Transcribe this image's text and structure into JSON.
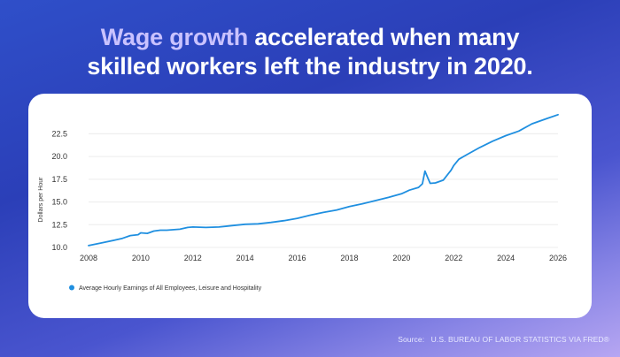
{
  "headline": {
    "accent": "Wage growth",
    "rest_line1": "accelerated when many",
    "line2": "skilled workers left the industry in 2020."
  },
  "source": {
    "label": "Source:",
    "text": "U.S. BUREAU OF LABOR STATISTICS VIA FRED®"
  },
  "colors": {
    "line": "#1f8fe0",
    "accent_text": "#c9c2ff"
  },
  "chart_data": {
    "type": "line",
    "ylabel": "Dollars per Hour",
    "xlabel": "",
    "xlim": [
      2008,
      2026
    ],
    "ylim": [
      10,
      24
    ],
    "y_ticks": [
      "10.0",
      "12.5",
      "15.0",
      "17.5",
      "20.0",
      "22.5"
    ],
    "x_ticks": [
      "2008",
      "2010",
      "2012",
      "2014",
      "2016",
      "2018",
      "2020",
      "2022",
      "2024",
      "2026"
    ],
    "grid": "horizontal",
    "legend_position": "bottom-left",
    "series": [
      {
        "name": "Average Hourly Earnings of All Employees, Leisure and Hospitality",
        "color": "#1f8fe0",
        "points": [
          [
            2008.0,
            10.2
          ],
          [
            2008.5,
            10.5
          ],
          [
            2009.0,
            10.8
          ],
          [
            2009.3,
            11.0
          ],
          [
            2009.6,
            11.3
          ],
          [
            2009.9,
            11.4
          ],
          [
            2010.0,
            11.6
          ],
          [
            2010.25,
            11.55
          ],
          [
            2010.5,
            11.8
          ],
          [
            2010.75,
            11.9
          ],
          [
            2011.0,
            11.9
          ],
          [
            2011.5,
            12.0
          ],
          [
            2011.8,
            12.2
          ],
          [
            2012.0,
            12.25
          ],
          [
            2012.5,
            12.2
          ],
          [
            2013.0,
            12.25
          ],
          [
            2013.5,
            12.4
          ],
          [
            2014.0,
            12.55
          ],
          [
            2014.5,
            12.6
          ],
          [
            2015.0,
            12.75
          ],
          [
            2015.5,
            12.95
          ],
          [
            2016.0,
            13.2
          ],
          [
            2016.5,
            13.55
          ],
          [
            2017.0,
            13.85
          ],
          [
            2017.5,
            14.1
          ],
          [
            2018.0,
            14.5
          ],
          [
            2018.5,
            14.8
          ],
          [
            2019.0,
            15.15
          ],
          [
            2019.5,
            15.5
          ],
          [
            2020.0,
            15.9
          ],
          [
            2020.3,
            16.3
          ],
          [
            2020.65,
            16.6
          ],
          [
            2020.8,
            17.0
          ],
          [
            2020.9,
            18.4
          ],
          [
            2021.0,
            17.7
          ],
          [
            2021.1,
            17.05
          ],
          [
            2021.3,
            17.1
          ],
          [
            2021.6,
            17.4
          ],
          [
            2021.9,
            18.5
          ],
          [
            2022.0,
            19.0
          ],
          [
            2022.2,
            19.7
          ],
          [
            2022.5,
            20.2
          ],
          [
            2023.0,
            21.0
          ],
          [
            2023.5,
            21.7
          ],
          [
            2024.0,
            22.3
          ],
          [
            2024.5,
            22.8
          ],
          [
            2025.0,
            23.6
          ],
          [
            2025.3,
            23.9
          ],
          [
            2025.6,
            24.2
          ],
          [
            2026.0,
            24.6
          ]
        ]
      }
    ]
  }
}
